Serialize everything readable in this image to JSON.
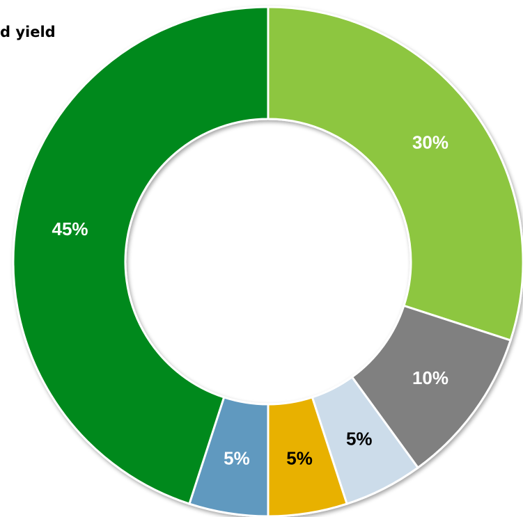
{
  "chart_data": {
    "type": "donut",
    "title": "d yield",
    "values": [
      30,
      10,
      5,
      5,
      5,
      45
    ],
    "value_labels": [
      "30%",
      "10%",
      "5%",
      "5%",
      "5%",
      "45%"
    ],
    "colors": [
      "#8dc63f",
      "#808080",
      "#ccdcea",
      "#e8b100",
      "#6199bf",
      "#00891e"
    ],
    "label_colors": [
      "#ffffff",
      "#ffffff",
      "#000000",
      "#000000",
      "#ffffff",
      "#ffffff"
    ]
  }
}
